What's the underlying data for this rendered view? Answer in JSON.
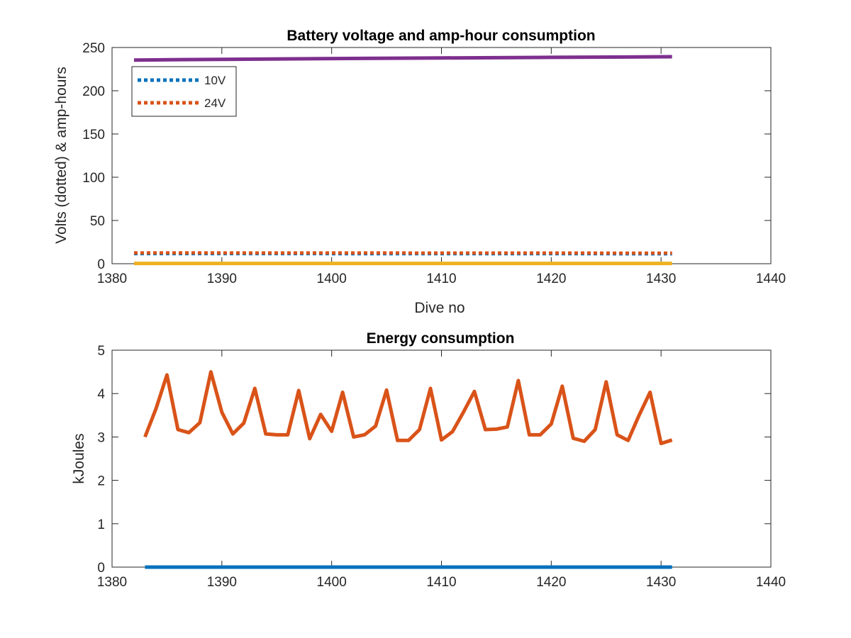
{
  "chart_data": [
    {
      "type": "line",
      "title": "Battery voltage and amp-hour consumption",
      "xlabel": "Dive no",
      "ylabel": "Volts (dotted) & amp-hours",
      "xlim": [
        1380,
        1440
      ],
      "ylim": [
        0,
        250
      ],
      "xticks": [
        "1380",
        "1390",
        "1400",
        "1410",
        "1420",
        "1430",
        "1440"
      ],
      "yticks": [
        "0",
        "50",
        "100",
        "150",
        "200",
        "250"
      ],
      "grid": false,
      "legend_position": "top-left",
      "series": [
        {
          "name": "10V",
          "style": "dotted",
          "color": "#0072BD",
          "x": [
            1382,
            1431
          ],
          "values": [
            11.6,
            11.4
          ]
        },
        {
          "name": "24V",
          "style": "dotted",
          "color": "#D95319",
          "x": [
            1382,
            1431
          ],
          "values": [
            12.6,
            12.3
          ]
        },
        {
          "style": "solid",
          "color": "#EDB120",
          "x": [
            1382,
            1431
          ],
          "values": [
            0.3,
            0.3
          ]
        },
        {
          "style": "solid",
          "color": "#7E2F8E",
          "x": [
            1382,
            1390,
            1400,
            1410,
            1420,
            1431
          ],
          "values": [
            235.5,
            236.3,
            237.2,
            237.9,
            238.6,
            239.3
          ]
        }
      ]
    },
    {
      "type": "line",
      "title": "Energy consumption",
      "xlabel": "",
      "ylabel": "kJoules",
      "xlim": [
        1380,
        1440
      ],
      "ylim": [
        0,
        5
      ],
      "xticks": [
        "1380",
        "1390",
        "1400",
        "1410",
        "1420",
        "1430",
        "1440"
      ],
      "yticks": [
        "0",
        "1",
        "2",
        "3",
        "4",
        "5"
      ],
      "grid": false,
      "series": [
        {
          "style": "solid",
          "color": "#0072BD",
          "x": [
            1383,
            1431
          ],
          "values": [
            0,
            0
          ]
        },
        {
          "style": "solid",
          "color": "#D95319",
          "x": [
            1383,
            1384,
            1385,
            1386,
            1387,
            1388,
            1389,
            1390,
            1391,
            1392,
            1393,
            1394,
            1395,
            1396,
            1397,
            1398,
            1399,
            1400,
            1401,
            1402,
            1403,
            1404,
            1405,
            1406,
            1407,
            1408,
            1409,
            1410,
            1411,
            1412,
            1413,
            1414,
            1415,
            1416,
            1417,
            1418,
            1419,
            1420,
            1421,
            1422,
            1423,
            1424,
            1425,
            1426,
            1427,
            1428,
            1429,
            1430,
            1431
          ],
          "values": [
            3.0,
            3.65,
            4.43,
            3.17,
            3.1,
            3.33,
            4.5,
            3.57,
            3.07,
            3.32,
            4.12,
            3.07,
            3.05,
            3.05,
            4.07,
            2.96,
            3.52,
            3.13,
            4.03,
            3.0,
            3.05,
            3.25,
            4.08,
            2.92,
            2.92,
            3.17,
            4.12,
            2.93,
            3.12,
            3.57,
            4.05,
            3.17,
            3.18,
            3.23,
            4.3,
            3.05,
            3.05,
            3.3,
            4.17,
            2.97,
            2.9,
            3.17,
            4.27,
            3.05,
            2.92,
            3.5,
            4.03,
            2.85,
            2.93
          ]
        }
      ]
    }
  ]
}
